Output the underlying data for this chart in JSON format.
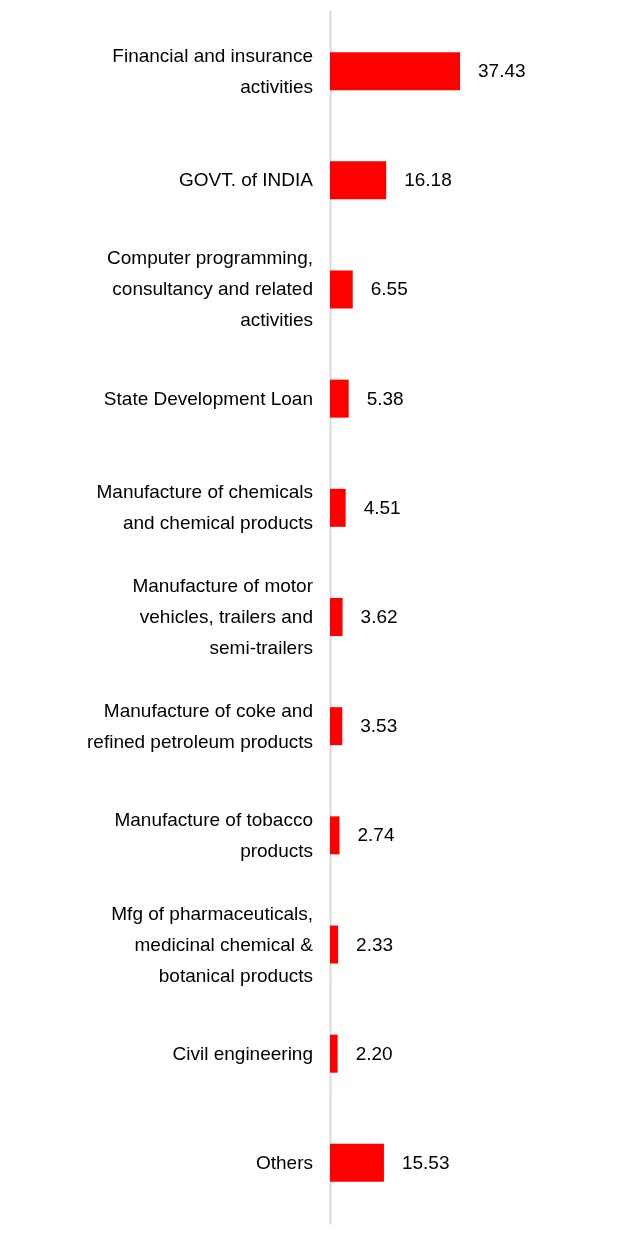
{
  "chart_data": {
    "type": "bar",
    "orientation": "horizontal",
    "categories": [
      "Financial and insurance activities",
      "GOVT. of INDIA",
      "Computer programming, consultancy and related activities",
      "State Development Loan",
      "Manufacture of chemicals and chemical products",
      "Manufacture of motor vehicles, trailers and semi-trailers",
      "Manufacture of coke and refined petroleum products",
      "Manufacture of tobacco products",
      "Mfg of pharmaceuticals, medicinal chemical & botanical products",
      "Civil engineering",
      "Others"
    ],
    "values": [
      37.43,
      16.18,
      6.55,
      5.38,
      4.51,
      3.62,
      3.53,
      2.74,
      2.33,
      2.2,
      15.53
    ],
    "color": "#ff0000",
    "value_labels": [
      "37.43",
      "16.18",
      "6.55",
      "5.38",
      "4.51",
      "3.62",
      "3.53",
      "2.74",
      "2.33",
      "2.20",
      "15.53"
    ]
  }
}
